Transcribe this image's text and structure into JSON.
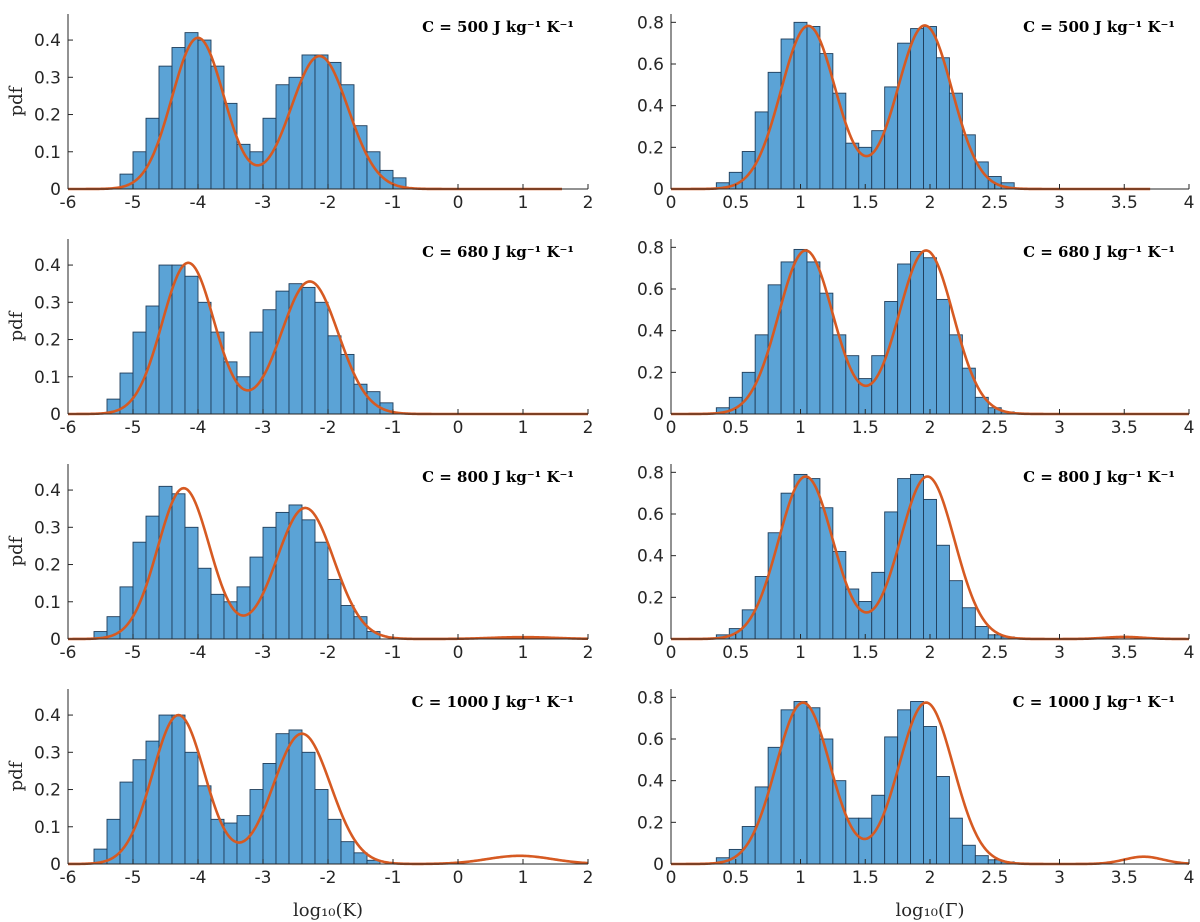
{
  "chart_data": [
    {
      "type": "bar",
      "panel": "K-500",
      "overlay": "kde-line",
      "annotation": "C = 500 J kg⁻¹ K⁻¹",
      "ylabel": "pdf",
      "xlabel": "",
      "xlim": [
        -6,
        2
      ],
      "ylim": [
        0,
        0.47
      ],
      "xticks": [
        "-6",
        "-5",
        "-4",
        "-3",
        "-2",
        "-1",
        "0",
        "1",
        "2"
      ],
      "yticks": [
        "0",
        "0.1",
        "0.2",
        "0.3",
        "0.4"
      ],
      "bin_start": -5.2,
      "bin_width": 0.2,
      "values": [
        0.04,
        0.1,
        0.19,
        0.33,
        0.38,
        0.42,
        0.4,
        0.33,
        0.23,
        0.12,
        0.1,
        0.19,
        0.28,
        0.3,
        0.36,
        0.36,
        0.34,
        0.28,
        0.17,
        0.1,
        0.05,
        0.03
      ],
      "curve": {
        "peaks": [
          [
            0.406,
            -4.0,
            0.4
          ],
          [
            0.357,
            -2.13,
            0.44
          ],
          [
            0,
            0,
            1
          ]
        ],
        "x_end": 1.6
      }
    },
    {
      "type": "bar",
      "panel": "G-500",
      "overlay": "kde-line",
      "annotation": "C = 500 J kg⁻¹ K⁻¹",
      "ylabel": "",
      "xlabel": "",
      "xlim": [
        0,
        4
      ],
      "ylim": [
        0,
        0.84
      ],
      "xticks": [
        "0",
        "0.5",
        "1",
        "1.5",
        "2",
        "2.5",
        "3",
        "3.5",
        "4"
      ],
      "yticks": [
        "0",
        "0.2",
        "0.4",
        "0.6",
        "0.8"
      ],
      "bin_start": 0.35,
      "bin_width": 0.1,
      "values": [
        0.03,
        0.08,
        0.18,
        0.37,
        0.56,
        0.72,
        0.8,
        0.78,
        0.65,
        0.46,
        0.22,
        0.2,
        0.28,
        0.49,
        0.7,
        0.77,
        0.78,
        0.63,
        0.46,
        0.26,
        0.13,
        0.06,
        0.03
      ],
      "curve": {
        "peaks": [
          [
            0.783,
            1.06,
            0.21
          ],
          [
            0.785,
            1.96,
            0.21
          ],
          [
            0,
            0,
            1
          ]
        ],
        "x_end": 3.7
      }
    },
    {
      "type": "bar",
      "panel": "K-680",
      "overlay": "kde-line",
      "annotation": "C = 680 J kg⁻¹ K⁻¹",
      "ylabel": "pdf",
      "xlabel": "",
      "xlim": [
        -6,
        2
      ],
      "ylim": [
        0,
        0.47
      ],
      "xticks": [
        "-6",
        "-5",
        "-4",
        "-3",
        "-2",
        "-1",
        "0",
        "1",
        "2"
      ],
      "yticks": [
        "0",
        "0.1",
        "0.2",
        "0.3",
        "0.4"
      ],
      "bin_start": -5.4,
      "bin_width": 0.2,
      "values": [
        0.04,
        0.11,
        0.22,
        0.29,
        0.4,
        0.4,
        0.37,
        0.3,
        0.22,
        0.14,
        0.1,
        0.22,
        0.28,
        0.33,
        0.35,
        0.34,
        0.3,
        0.21,
        0.16,
        0.08,
        0.06,
        0.03
      ],
      "curve": {
        "peaks": [
          [
            0.406,
            -4.15,
            0.4
          ],
          [
            0.356,
            -2.28,
            0.44
          ],
          [
            0,
            0,
            1
          ]
        ],
        "x_end": 2.0
      }
    },
    {
      "type": "bar",
      "panel": "G-680",
      "overlay": "kde-line",
      "annotation": "C = 680 J kg⁻¹ K⁻¹",
      "ylabel": "",
      "xlabel": "",
      "xlim": [
        0,
        4
      ],
      "ylim": [
        0,
        0.84
      ],
      "xticks": [
        "0",
        "0.5",
        "1",
        "1.5",
        "2",
        "2.5",
        "3",
        "3.5",
        "4"
      ],
      "yticks": [
        "0",
        "0.2",
        "0.4",
        "0.6",
        "0.8"
      ],
      "bin_start": 0.35,
      "bin_width": 0.1,
      "values": [
        0.03,
        0.08,
        0.2,
        0.38,
        0.62,
        0.73,
        0.79,
        0.73,
        0.58,
        0.38,
        0.28,
        0.17,
        0.28,
        0.54,
        0.72,
        0.78,
        0.75,
        0.55,
        0.38,
        0.22,
        0.08,
        0.03,
        0.01
      ],
      "curve": {
        "peaks": [
          [
            0.785,
            1.04,
            0.21
          ],
          [
            0.785,
            1.97,
            0.21
          ],
          [
            0,
            0,
            1
          ]
        ],
        "x_end": 4.0
      }
    },
    {
      "type": "bar",
      "panel": "K-800",
      "overlay": "kde-line",
      "annotation": "C = 800 J kg⁻¹ K⁻¹",
      "ylabel": "pdf",
      "xlabel": "",
      "xlim": [
        -6,
        2
      ],
      "ylim": [
        0,
        0.47
      ],
      "xticks": [
        "-6",
        "-5",
        "-4",
        "-3",
        "-2",
        "-1",
        "0",
        "1",
        "2"
      ],
      "yticks": [
        "0",
        "0.1",
        "0.2",
        "0.3",
        "0.4"
      ],
      "bin_start": -5.6,
      "bin_width": 0.2,
      "values": [
        0.02,
        0.06,
        0.14,
        0.26,
        0.33,
        0.41,
        0.39,
        0.3,
        0.19,
        0.12,
        0.1,
        0.14,
        0.22,
        0.3,
        0.34,
        0.36,
        0.32,
        0.26,
        0.16,
        0.09,
        0.06,
        0.02
      ],
      "curve": {
        "peaks": [
          [
            0.405,
            -4.22,
            0.4
          ],
          [
            0.352,
            -2.35,
            0.44
          ],
          [
            0.005,
            1.0,
            0.5
          ]
        ],
        "x_end": 2.0
      }
    },
    {
      "type": "bar",
      "panel": "G-800",
      "overlay": "kde-line",
      "annotation": "C = 800 J kg⁻¹ K⁻¹",
      "ylabel": "",
      "xlabel": "",
      "xlim": [
        0,
        4
      ],
      "ylim": [
        0,
        0.84
      ],
      "xticks": [
        "0",
        "0.5",
        "1",
        "1.5",
        "2",
        "2.5",
        "3",
        "3.5",
        "4"
      ],
      "yticks": [
        "0",
        "0.2",
        "0.4",
        "0.6",
        "0.8"
      ],
      "bin_start": 0.35,
      "bin_width": 0.1,
      "values": [
        0.02,
        0.05,
        0.14,
        0.3,
        0.51,
        0.7,
        0.79,
        0.77,
        0.63,
        0.42,
        0.24,
        0.18,
        0.32,
        0.61,
        0.77,
        0.79,
        0.67,
        0.45,
        0.28,
        0.15,
        0.06,
        0.02,
        0.01
      ],
      "curve": {
        "peaks": [
          [
            0.78,
            1.04,
            0.21
          ],
          [
            0.78,
            1.98,
            0.21
          ],
          [
            0.01,
            3.5,
            0.15
          ]
        ],
        "x_end": 4.0
      }
    },
    {
      "type": "bar",
      "panel": "K-1000",
      "overlay": "kde-line",
      "annotation": "C = 1000 J kg⁻¹ K⁻¹",
      "ylabel": "pdf",
      "xlabel": "log₁₀(K)",
      "xlim": [
        -6,
        2
      ],
      "ylim": [
        0,
        0.47
      ],
      "xticks": [
        "-6",
        "-5",
        "-4",
        "-3",
        "-2",
        "-1",
        "0",
        "1",
        "2"
      ],
      "yticks": [
        "0",
        "0.1",
        "0.2",
        "0.3",
        "0.4"
      ],
      "bin_start": -5.6,
      "bin_width": 0.2,
      "values": [
        0.04,
        0.12,
        0.22,
        0.28,
        0.33,
        0.4,
        0.4,
        0.3,
        0.21,
        0.12,
        0.11,
        0.13,
        0.2,
        0.27,
        0.35,
        0.36,
        0.3,
        0.2,
        0.12,
        0.06,
        0.03,
        0.01
      ],
      "curve": {
        "peaks": [
          [
            0.4,
            -4.3,
            0.4
          ],
          [
            0.35,
            -2.4,
            0.44
          ],
          [
            0.022,
            0.95,
            0.5
          ]
        ],
        "x_end": 2.0
      }
    },
    {
      "type": "bar",
      "panel": "G-1000",
      "overlay": "kde-line",
      "annotation": "C = 1000 J kg⁻¹ K⁻¹",
      "ylabel": "",
      "xlabel": "log₁₀(Γ)",
      "xlim": [
        0,
        4
      ],
      "ylim": [
        0,
        0.84
      ],
      "xticks": [
        "0",
        "0.5",
        "1",
        "1.5",
        "2",
        "2.5",
        "3",
        "3.5",
        "4"
      ],
      "yticks": [
        "0",
        "0.2",
        "0.4",
        "0.6",
        "0.8"
      ],
      "bin_start": 0.35,
      "bin_width": 0.1,
      "values": [
        0.03,
        0.07,
        0.18,
        0.37,
        0.56,
        0.74,
        0.78,
        0.75,
        0.6,
        0.4,
        0.22,
        0.22,
        0.33,
        0.61,
        0.74,
        0.78,
        0.66,
        0.42,
        0.22,
        0.09,
        0.04,
        0.02,
        0.01
      ],
      "curve": {
        "peaks": [
          [
            0.775,
            1.02,
            0.21
          ],
          [
            0.775,
            1.97,
            0.21
          ],
          [
            0.035,
            3.65,
            0.15
          ]
        ],
        "x_end": 4.0
      }
    }
  ],
  "colors": {
    "bar": "#5ba3d6",
    "bar_edge": "#1f3d5a",
    "curve": "#d65a22",
    "axis": "#262626"
  }
}
